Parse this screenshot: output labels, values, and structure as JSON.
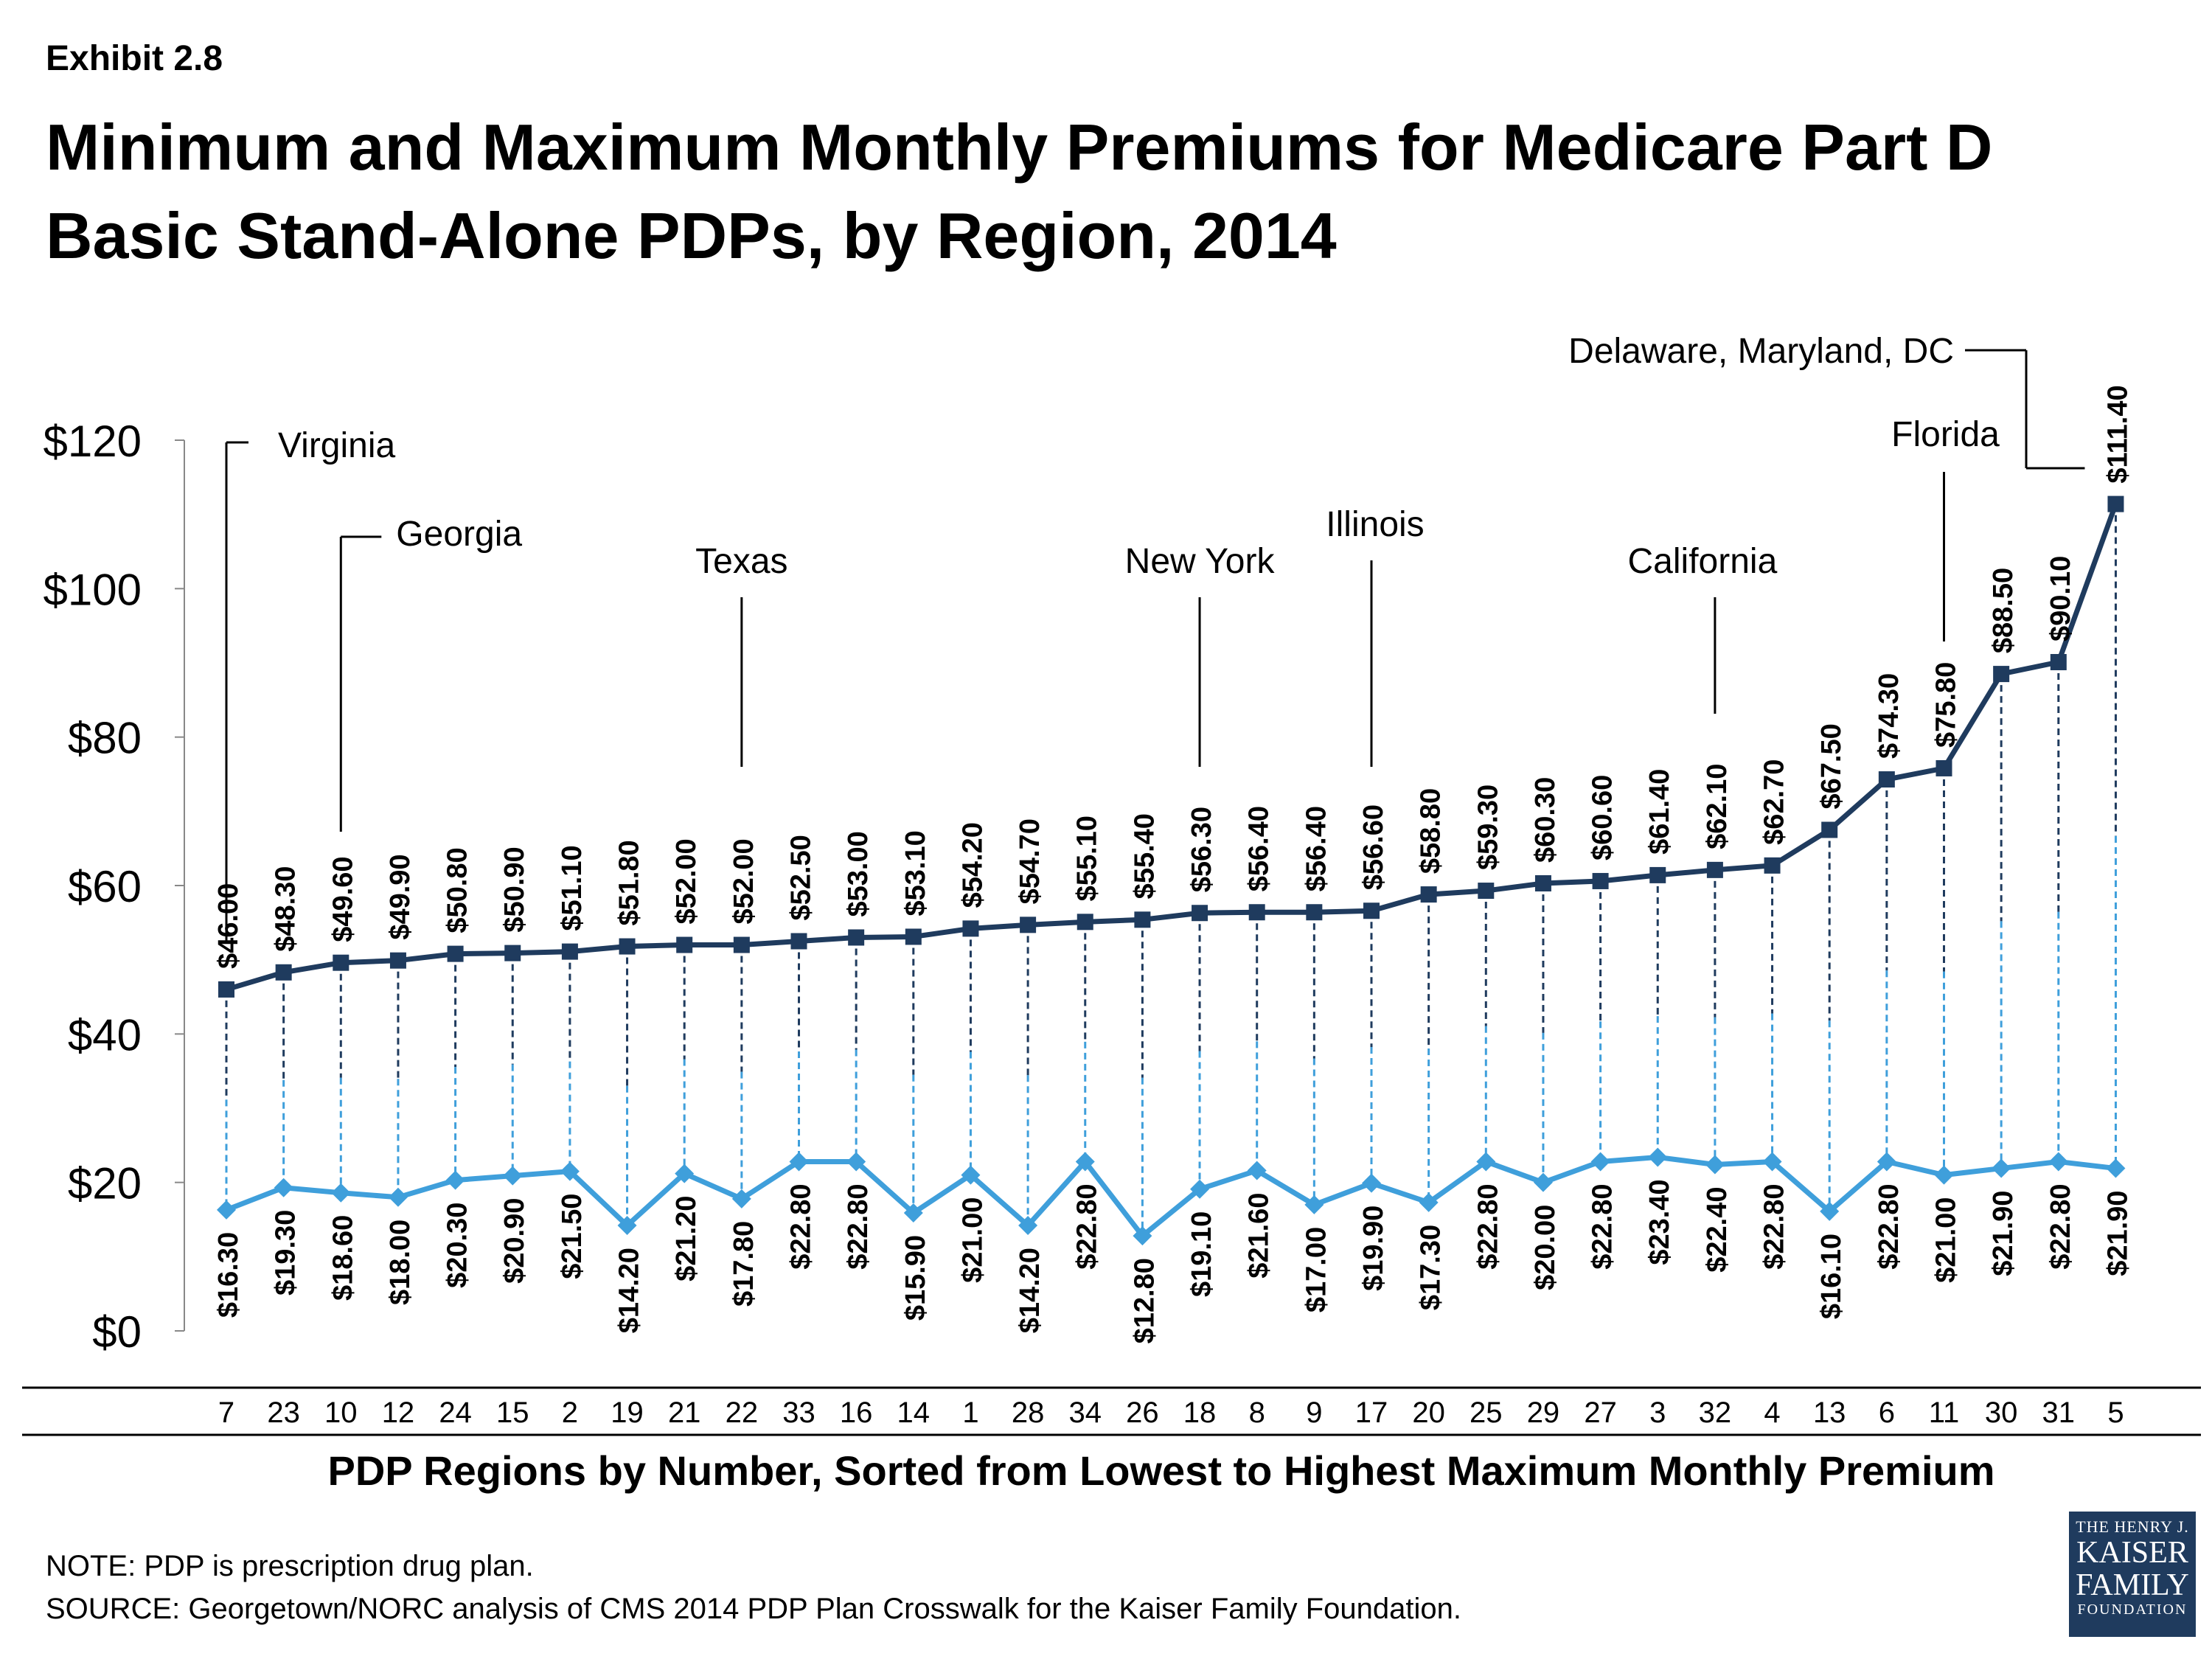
{
  "exhibit": "Exhibit 2.8",
  "title_line1": "Minimum and Maximum Monthly Premiums for Medicare Part D",
  "title_line2": "Basic Stand-Alone PDPs, by Region, 2014",
  "note": "NOTE: PDP is prescription drug plan.",
  "source": "SOURCE: Georgetown/NORC analysis of CMS 2014 PDP Plan Crosswalk for the Kaiser Family Foundation.",
  "logo": {
    "line1": "THE HENRY J.",
    "line2": "KAISER",
    "line3": "FAMILY",
    "line4": "FOUNDATION"
  },
  "colors": {
    "max_series": "#1f3b5e",
    "min_series": "#3f9fdb",
    "axis": "#000000"
  },
  "chart_data": {
    "type": "line",
    "title": "Minimum and Maximum Monthly Premiums for Medicare Part D Basic Stand-Alone PDPs, by Region, 2014",
    "xlabel": "PDP Regions by Number, Sorted from Lowest to Highest Maximum Monthly Premium",
    "ylabel": "",
    "ylim": [
      0,
      120
    ],
    "yticks": [
      0,
      20,
      40,
      60,
      80,
      100,
      120
    ],
    "ytick_labels": [
      "$0",
      "$20",
      "$40",
      "$60",
      "$80",
      "$100",
      "$120"
    ],
    "grid": false,
    "categories": [
      "7",
      "23",
      "10",
      "12",
      "24",
      "15",
      "2",
      "19",
      "21",
      "22",
      "33",
      "16",
      "14",
      "1",
      "28",
      "34",
      "26",
      "18",
      "8",
      "9",
      "17",
      "20",
      "25",
      "29",
      "27",
      "3",
      "32",
      "4",
      "13",
      "6",
      "11",
      "30",
      "31",
      "5"
    ],
    "series": [
      {
        "marker": "square",
        "values": [
          46.0,
          48.3,
          49.6,
          49.9,
          50.8,
          50.9,
          51.1,
          51.8,
          52.0,
          52.0,
          52.5,
          53.0,
          53.1,
          54.2,
          54.7,
          55.1,
          55.4,
          56.3,
          56.4,
          56.4,
          56.6,
          58.8,
          59.3,
          60.3,
          60.6,
          61.4,
          62.1,
          62.7,
          67.5,
          74.3,
          75.8,
          88.5,
          90.1,
          111.4
        ],
        "labels": [
          "$46.00",
          "$48.30",
          "$49.60",
          "$49.90",
          "$50.80",
          "$50.90",
          "$51.10",
          "$51.80",
          "$52.00",
          "$52.00",
          "$52.50",
          "$53.00",
          "$53.10",
          "$54.20",
          "$54.70",
          "$55.10",
          "$55.40",
          "$56.30",
          "$56.40",
          "$56.40",
          "$56.60",
          "$58.80",
          "$59.30",
          "$60.30",
          "$60.60",
          "$61.40",
          "$62.10",
          "$62.70",
          "$67.50",
          "$74.30",
          "$75.80",
          "$88.50",
          "$90.10",
          "$111.40"
        ]
      },
      {
        "marker": "diamond",
        "values": [
          16.3,
          19.3,
          18.6,
          18.0,
          20.3,
          20.9,
          21.5,
          14.2,
          21.2,
          17.8,
          22.8,
          22.8,
          15.9,
          21.0,
          14.2,
          22.8,
          12.8,
          19.1,
          21.6,
          17.0,
          19.9,
          17.3,
          22.8,
          20.0,
          22.8,
          23.4,
          22.4,
          22.8,
          16.1,
          22.8,
          21.0,
          21.9,
          22.8,
          21.9
        ],
        "labels": [
          "$16.30",
          "$19.30",
          "$18.60",
          "$18.00",
          "$20.30",
          "$20.90",
          "$21.50",
          "$14.20",
          "$21.20",
          "$17.80",
          "$22.80",
          "$22.80",
          "$15.90",
          "$21.00",
          "$14.20",
          "$22.80",
          "$12.80",
          "$19.10",
          "$21.60",
          "$17.00",
          "$19.90",
          "$17.30",
          "$22.80",
          "$20.00",
          "$22.80",
          "$23.40",
          "$22.40",
          "$22.80",
          "$16.10",
          "$22.80",
          "$21.00",
          "$21.90",
          "$22.80",
          "$21.90"
        ]
      }
    ],
    "annotations": [
      {
        "text": "Virginia",
        "index": 0
      },
      {
        "text": "Georgia",
        "index": 2
      },
      {
        "text": "Texas",
        "index": 9
      },
      {
        "text": "New York",
        "index": 17
      },
      {
        "text": "Illinois",
        "index": 20
      },
      {
        "text": "California",
        "index": 26
      },
      {
        "text": "Florida",
        "index": 30
      },
      {
        "text": "Delaware, Maryland, DC",
        "index": 33
      }
    ]
  }
}
